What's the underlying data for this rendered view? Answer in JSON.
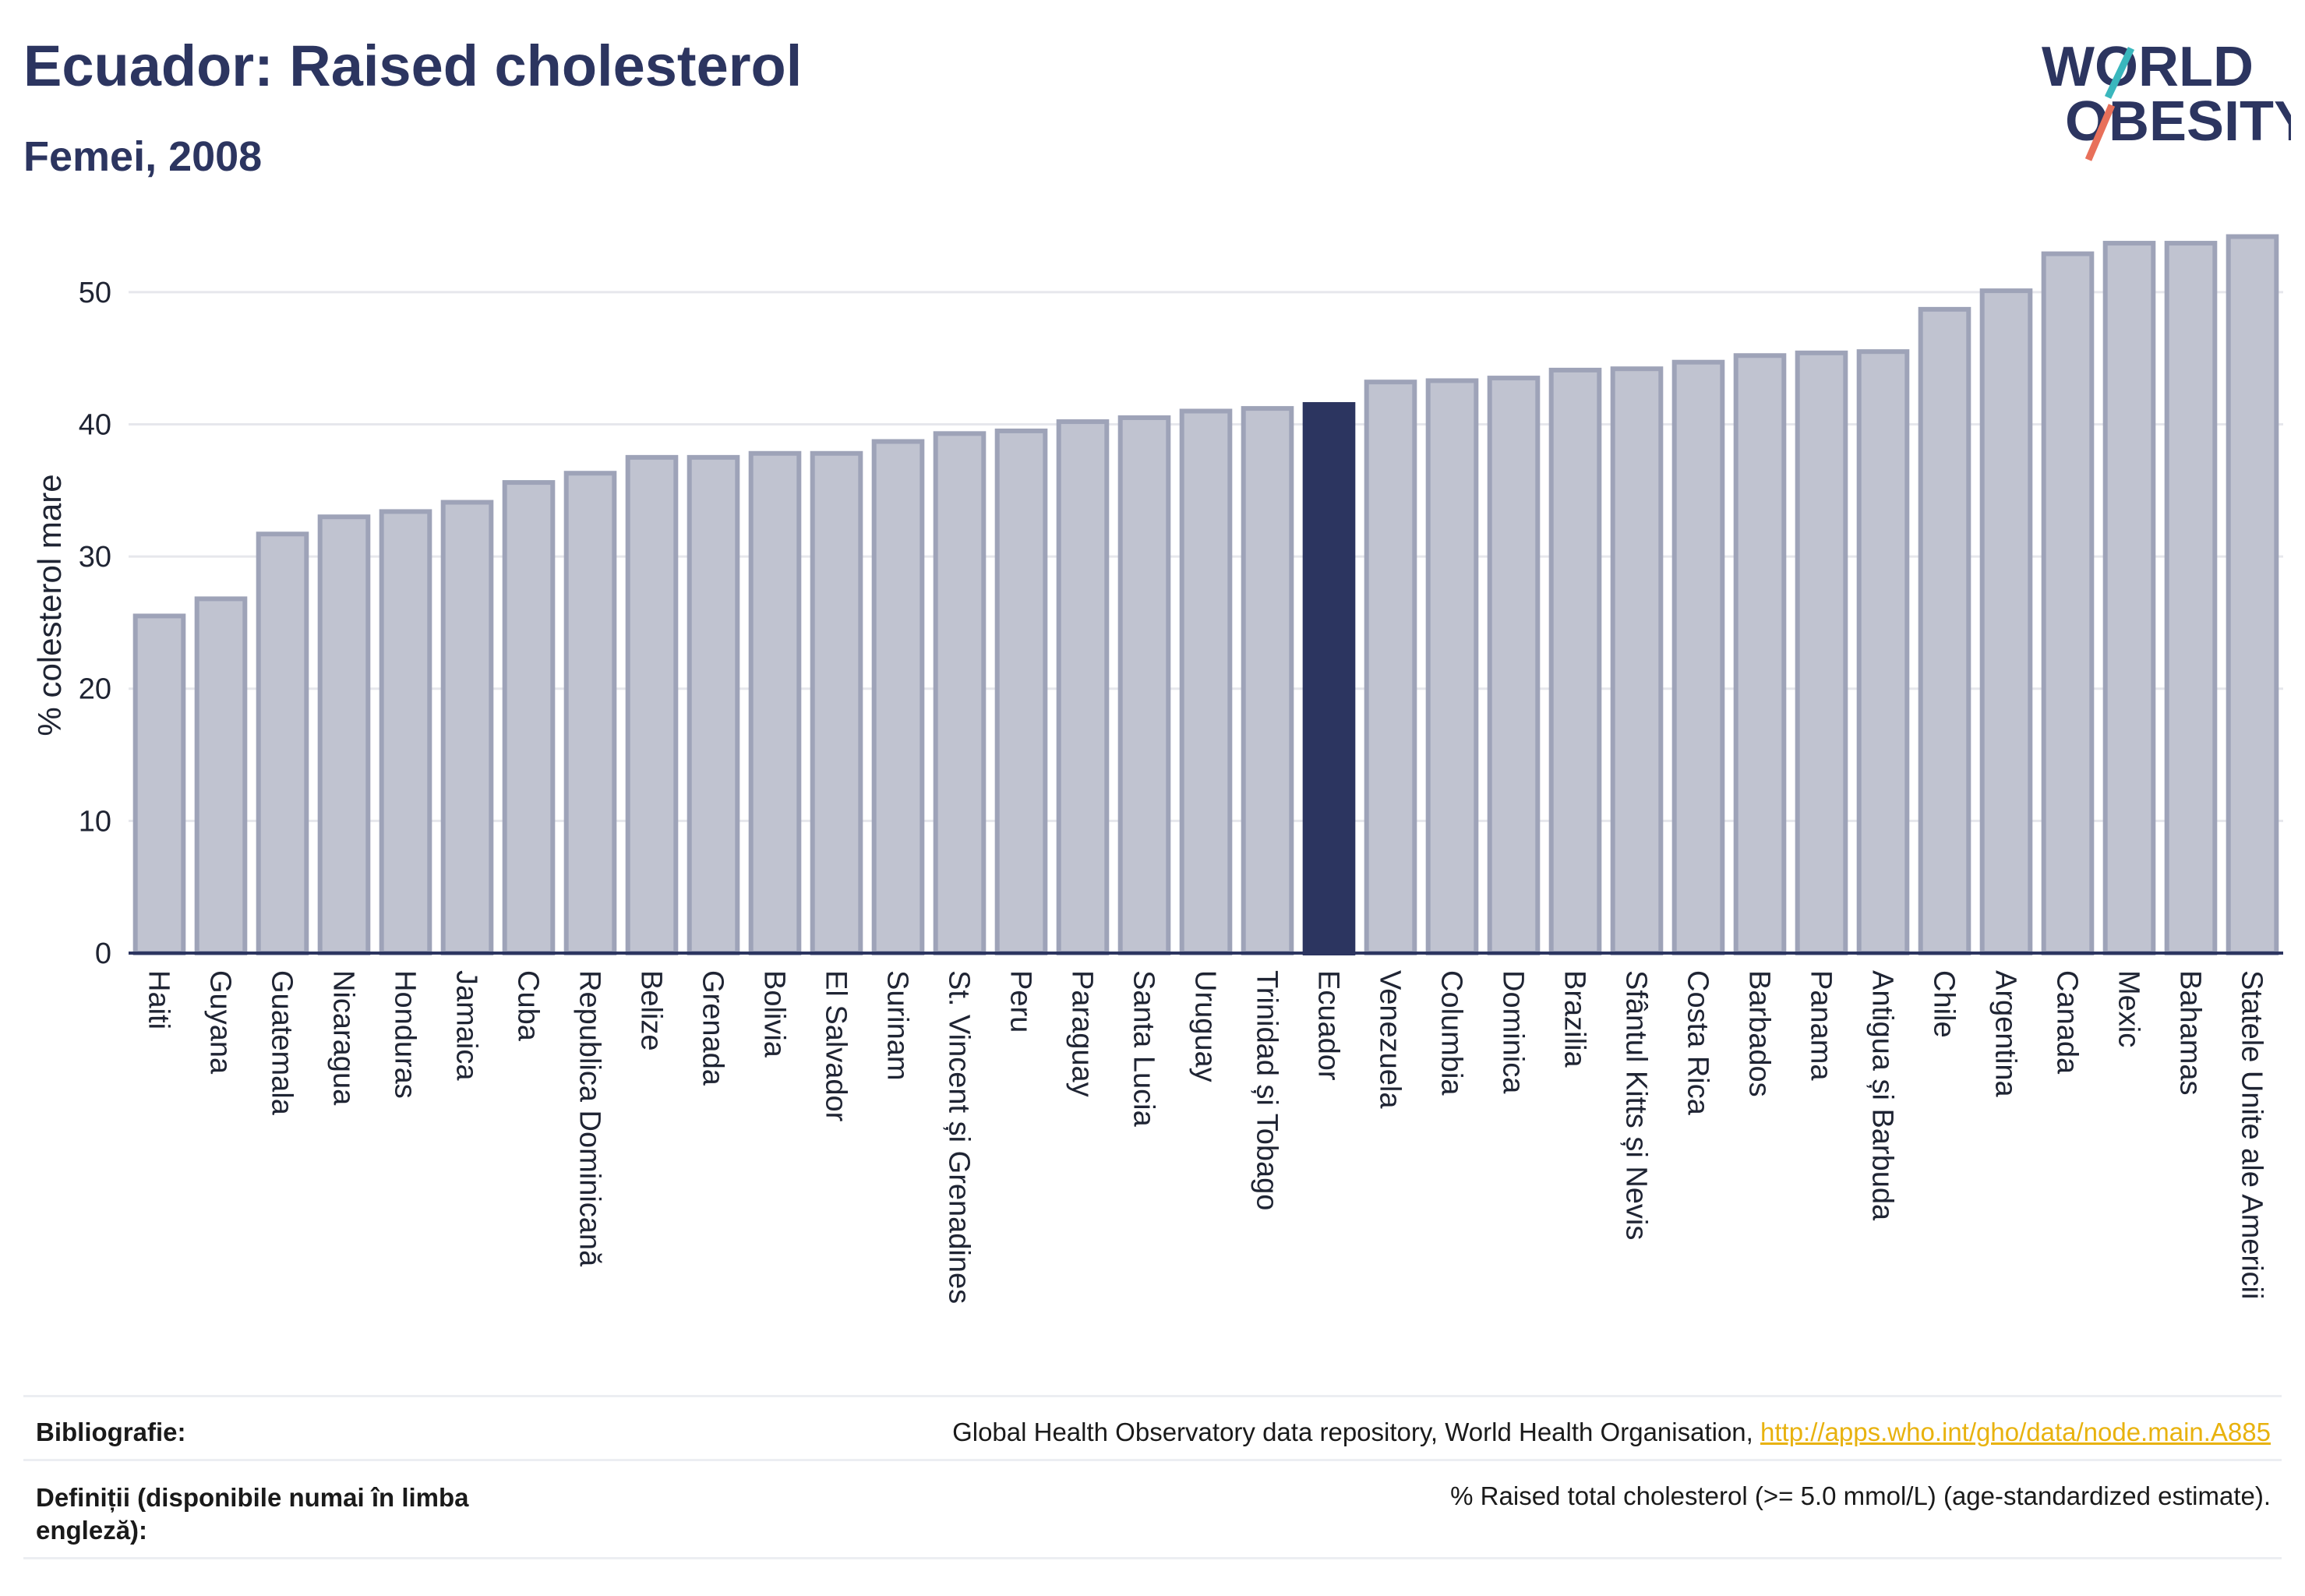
{
  "header": {
    "title": "Ecuador: Raised cholesterol",
    "subtitle": "Femei, 2008"
  },
  "logo": {
    "line1": "WORLD",
    "line2": "OBESITY",
    "accent_teal": "#3ab7bd",
    "accent_coral": "#e8705a"
  },
  "colors": {
    "bar": "#c0c3d0",
    "bar_stroke": "#9ea3b8",
    "highlight": "#2c3560",
    "grid": "#e6e7ec",
    "axis": "#2c3560"
  },
  "chart_data": {
    "type": "bar",
    "ylabel": "% colesterol mare",
    "ylim": [
      0,
      55
    ],
    "yticks": [
      0,
      10,
      20,
      30,
      40,
      50
    ],
    "grid": true,
    "highlight": "Ecuador",
    "categories": [
      "Haiti",
      "Guyana",
      "Guatemala",
      "Nicaragua",
      "Honduras",
      "Jamaica",
      "Cuba",
      "Republica Dominicană",
      "Belize",
      "Grenada",
      "Bolivia",
      "El Salvador",
      "Surinam",
      "St. Vincent și Grenadines",
      "Peru",
      "Paraguay",
      "Santa Lucia",
      "Uruguay",
      "Trinidad și Tobago",
      "Ecuador",
      "Venezuela",
      "Columbia",
      "Dominica",
      "Brazilia",
      "Sfântul Kitts și Nevis",
      "Costa Rica",
      "Barbados",
      "Panama",
      "Antigua și Barbuda",
      "Chile",
      "Argentina",
      "Canada",
      "Mexic",
      "Bahamas",
      "Statele Unite ale Americii"
    ],
    "values": [
      25.5,
      26.8,
      31.7,
      33.0,
      33.4,
      34.1,
      35.6,
      36.3,
      37.5,
      37.5,
      37.8,
      37.8,
      38.7,
      39.3,
      39.5,
      40.2,
      40.5,
      41.0,
      41.2,
      41.5,
      43.2,
      43.3,
      43.5,
      44.1,
      44.2,
      44.7,
      45.2,
      45.4,
      45.5,
      48.7,
      50.1,
      52.9,
      53.7,
      53.7,
      54.2
    ]
  },
  "footer": {
    "bibliography_label": "Bibliografie:",
    "bibliography_text": "Global Health Observatory data repository, World Health Organisation, ",
    "bibliography_link": "http://apps.who.int/gho/data/node.main.A885",
    "definitions_label_1": "Definiții (disponibile numai în limba",
    "definitions_label_2": "engleză):",
    "definitions_text": "% Raised total cholesterol (>= 5.0 mmol/L) (age-standardized estimate)."
  }
}
